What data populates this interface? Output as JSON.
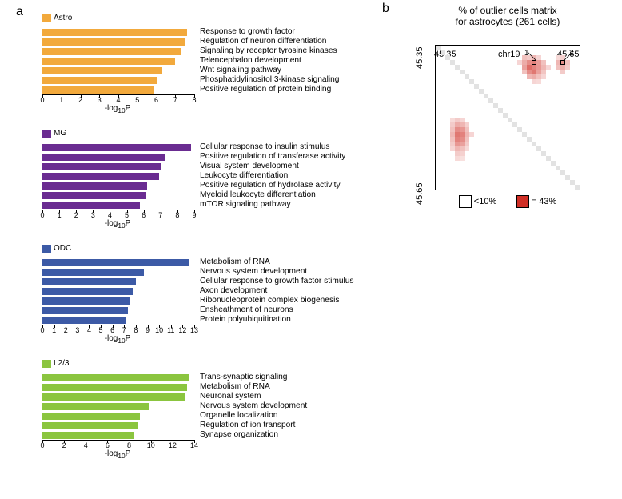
{
  "panel_a": {
    "label": "a",
    "xlabel_html": "-log<sub>10</sub>P",
    "charts": [
      {
        "name": "Astro",
        "color": "#f2a93c",
        "xmax": 8,
        "tick_step": 1,
        "terms": [
          "Response to growth factor",
          "Regulation of neuron differentiation",
          "Signaling by receptor tyrosine kinases",
          "Telencephalon development",
          "Wnt signaling pathway",
          "Phosphatidylinositol 3-kinase signaling",
          "Positive regulation of protein binding"
        ],
        "values": [
          7.6,
          7.5,
          7.3,
          7.0,
          6.3,
          6.0,
          5.9
        ]
      },
      {
        "name": "MG",
        "color": "#6a2c91",
        "xmax": 9,
        "tick_step": 1,
        "terms": [
          "Cellular response to insulin stimulus",
          "Positive regulation of transferase activity",
          "Visual system development",
          "Leukocyte differentiation",
          "Positive regulation of hydrolase activity",
          "Myeloid leukocyte differentiation",
          "mTOR signaling pathway"
        ],
        "values": [
          8.8,
          7.3,
          7.0,
          6.9,
          6.2,
          6.1,
          5.8
        ]
      },
      {
        "name": "ODC",
        "color": "#3c5aa6",
        "xmax": 13,
        "tick_step": 1,
        "terms": [
          "Metabolism of RNA",
          "Nervous system development",
          "Cellular response to growth factor stimulus",
          "Axon development",
          "Ribonucleoprotein complex biogenesis",
          "Ensheathment of neurons",
          "Protein polyubiquitination"
        ],
        "values": [
          12.5,
          8.7,
          8.0,
          7.7,
          7.5,
          7.3,
          7.1
        ]
      },
      {
        "name": "L2/3",
        "color": "#8bc53f",
        "xmax": 14,
        "tick_step": 2,
        "terms": [
          "Trans-synaptic signaling",
          "Metabolism of RNA",
          "Neuronal system",
          "Nervous system development",
          "Organelle localization",
          "Regulation of ion transport",
          "Synapse organization"
        ],
        "values": [
          13.5,
          13.3,
          13.2,
          9.8,
          9.0,
          8.8,
          8.5
        ]
      }
    ]
  },
  "panel_b": {
    "label": "b",
    "title_line1": "% of outlier cells matrix",
    "title_line2": "for astrocytes (261 cells)",
    "x_left": "45.35",
    "x_right": "45.65",
    "x_center": "chr19",
    "y_top": "45.35",
    "y_bottom": "45.65",
    "legend_low": "<10%",
    "legend_high": "= 43%",
    "legend_low_color": "#ffffff",
    "legend_high_color": "#d02f26",
    "grid_size": 30,
    "callout_1": {
      "r": 3,
      "c": 20,
      "label": "1"
    },
    "callout_2": {
      "r": 3,
      "c": 26,
      "label": "2"
    },
    "diag_color": "#e2e2e2",
    "cells": [
      {
        "r": 2,
        "c": 18,
        "v": 0.3
      },
      {
        "r": 2,
        "c": 19,
        "v": 0.25
      },
      {
        "r": 2,
        "c": 20,
        "v": 0.35
      },
      {
        "r": 2,
        "c": 21,
        "v": 0.2
      },
      {
        "r": 2,
        "c": 25,
        "v": 0.18
      },
      {
        "r": 2,
        "c": 26,
        "v": 0.22
      },
      {
        "r": 3,
        "c": 17,
        "v": 0.2
      },
      {
        "r": 3,
        "c": 18,
        "v": 0.4
      },
      {
        "r": 3,
        "c": 19,
        "v": 0.55
      },
      {
        "r": 3,
        "c": 20,
        "v": 0.62
      },
      {
        "r": 3,
        "c": 21,
        "v": 0.48
      },
      {
        "r": 3,
        "c": 22,
        "v": 0.3
      },
      {
        "r": 3,
        "c": 25,
        "v": 0.35
      },
      {
        "r": 3,
        "c": 26,
        "v": 0.55
      },
      {
        "r": 3,
        "c": 27,
        "v": 0.3
      },
      {
        "r": 4,
        "c": 18,
        "v": 0.45
      },
      {
        "r": 4,
        "c": 19,
        "v": 0.7
      },
      {
        "r": 4,
        "c": 20,
        "v": 0.6
      },
      {
        "r": 4,
        "c": 21,
        "v": 0.5
      },
      {
        "r": 4,
        "c": 22,
        "v": 0.35
      },
      {
        "r": 4,
        "c": 23,
        "v": 0.2
      },
      {
        "r": 4,
        "c": 25,
        "v": 0.3
      },
      {
        "r": 4,
        "c": 26,
        "v": 0.4
      },
      {
        "r": 4,
        "c": 27,
        "v": 0.25
      },
      {
        "r": 5,
        "c": 18,
        "v": 0.3
      },
      {
        "r": 5,
        "c": 19,
        "v": 0.55
      },
      {
        "r": 5,
        "c": 20,
        "v": 0.65
      },
      {
        "r": 5,
        "c": 21,
        "v": 0.45
      },
      {
        "r": 5,
        "c": 22,
        "v": 0.28
      },
      {
        "r": 5,
        "c": 26,
        "v": 0.25
      },
      {
        "r": 6,
        "c": 19,
        "v": 0.35
      },
      {
        "r": 6,
        "c": 20,
        "v": 0.4
      },
      {
        "r": 6,
        "c": 21,
        "v": 0.3
      },
      {
        "r": 6,
        "c": 22,
        "v": 0.2
      },
      {
        "r": 7,
        "c": 20,
        "v": 0.2
      },
      {
        "r": 7,
        "c": 21,
        "v": 0.18
      },
      {
        "r": 15,
        "c": 3,
        "v": 0.18
      },
      {
        "r": 15,
        "c": 4,
        "v": 0.25
      },
      {
        "r": 15,
        "c": 5,
        "v": 0.2
      },
      {
        "r": 16,
        "c": 3,
        "v": 0.25
      },
      {
        "r": 16,
        "c": 4,
        "v": 0.4
      },
      {
        "r": 16,
        "c": 5,
        "v": 0.35
      },
      {
        "r": 16,
        "c": 6,
        "v": 0.22
      },
      {
        "r": 17,
        "c": 3,
        "v": 0.3
      },
      {
        "r": 17,
        "c": 4,
        "v": 0.55
      },
      {
        "r": 17,
        "c": 5,
        "v": 0.5
      },
      {
        "r": 17,
        "c": 6,
        "v": 0.3
      },
      {
        "r": 18,
        "c": 3,
        "v": 0.35
      },
      {
        "r": 18,
        "c": 4,
        "v": 0.65
      },
      {
        "r": 18,
        "c": 5,
        "v": 0.6
      },
      {
        "r": 18,
        "c": 6,
        "v": 0.35
      },
      {
        "r": 18,
        "c": 7,
        "v": 0.2
      },
      {
        "r": 19,
        "c": 3,
        "v": 0.3
      },
      {
        "r": 19,
        "c": 4,
        "v": 0.6
      },
      {
        "r": 19,
        "c": 5,
        "v": 0.55
      },
      {
        "r": 19,
        "c": 6,
        "v": 0.3
      },
      {
        "r": 20,
        "c": 3,
        "v": 0.25
      },
      {
        "r": 20,
        "c": 4,
        "v": 0.5
      },
      {
        "r": 20,
        "c": 5,
        "v": 0.45
      },
      {
        "r": 20,
        "c": 6,
        "v": 0.25
      },
      {
        "r": 21,
        "c": 3,
        "v": 0.2
      },
      {
        "r": 21,
        "c": 4,
        "v": 0.35
      },
      {
        "r": 21,
        "c": 5,
        "v": 0.3
      },
      {
        "r": 21,
        "c": 6,
        "v": 0.18
      },
      {
        "r": 22,
        "c": 4,
        "v": 0.25
      },
      {
        "r": 22,
        "c": 5,
        "v": 0.22
      },
      {
        "r": 23,
        "c": 4,
        "v": 0.18
      },
      {
        "r": 23,
        "c": 5,
        "v": 0.15
      }
    ]
  }
}
